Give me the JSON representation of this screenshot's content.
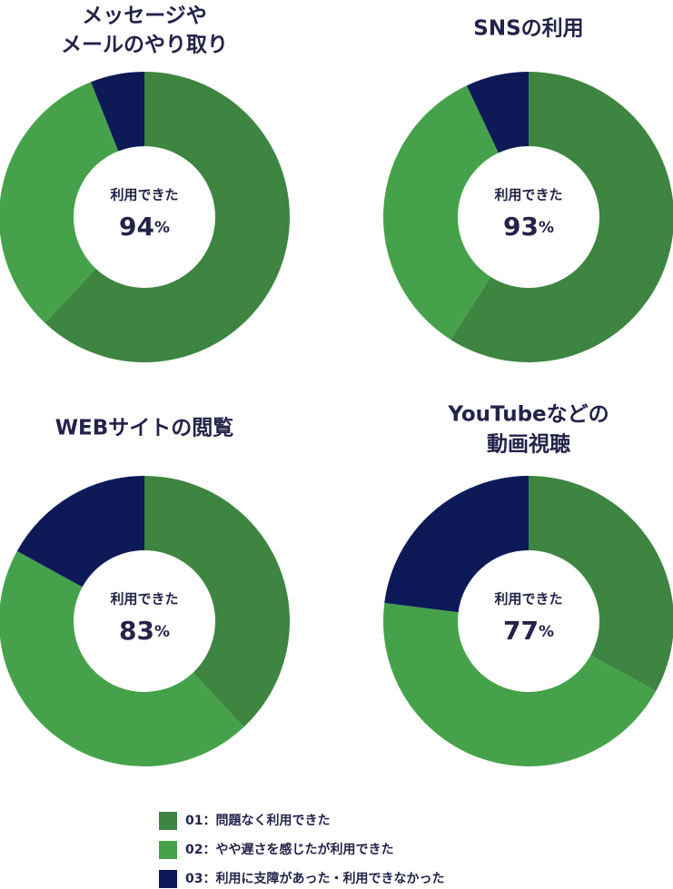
{
  "legend": [
    {
      "label": "01：問題なく利用できた",
      "color": "#3d8541"
    },
    {
      "label": "02：やや遅さを感じたが利用できた",
      "color": "#45a24a"
    },
    {
      "label": "03：利用に支障があった・利用できなかった",
      "color": "#0d1a57"
    }
  ],
  "chart_data": [
    {
      "type": "pie",
      "title": [
        "メッセージや",
        "メールのやり取り"
      ],
      "values": [
        62,
        32,
        6
      ],
      "center_text": "利用できた",
      "center_value": 94,
      "center_unit": "%"
    },
    {
      "type": "pie",
      "title": [
        "SNSの利用"
      ],
      "values": [
        59,
        34,
        7
      ],
      "center_text": "利用できた",
      "center_value": 93,
      "center_unit": "%"
    },
    {
      "type": "pie",
      "title": [
        "WEBサイトの閲覧"
      ],
      "values": [
        38,
        45,
        17
      ],
      "center_text": "利用できた",
      "center_value": 83,
      "center_unit": "%"
    },
    {
      "type": "pie",
      "title": [
        "YouTubeなどの",
        "動画視聴"
      ],
      "values": [
        33,
        44,
        23
      ],
      "center_text": "利用できた",
      "center_value": 77,
      "center_unit": "%"
    }
  ]
}
